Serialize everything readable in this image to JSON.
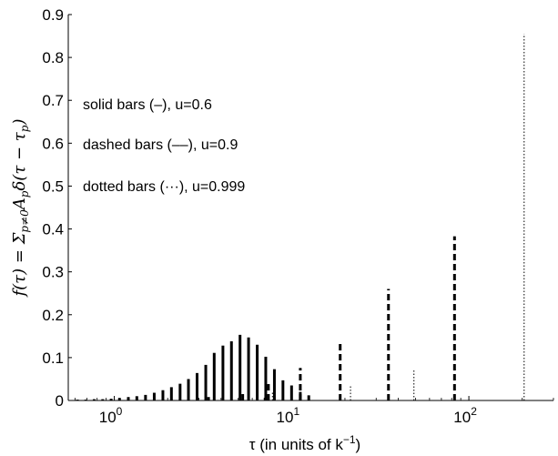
{
  "chart_data": {
    "type": "bar",
    "title": "",
    "xlabel": "τ (in units of k",
    "xlabel_sup": "−1",
    "xlabel_close": ")",
    "ylabel": "f(τ) = Σ",
    "ylabel_sub": "p≠0",
    "ylabel_rest": "A",
    "ylabel_sub2": "p",
    "ylabel_tail": "δ(τ − τ",
    "ylabel_sub3": "p",
    "ylabel_close": ")",
    "x_scale": "log",
    "xlim": [
      0.55,
      300
    ],
    "ylim": [
      0,
      0.9
    ],
    "grid": false,
    "x_ticks": [
      {
        "value": 1,
        "base": "10",
        "exp": "0"
      },
      {
        "value": 10,
        "base": "10",
        "exp": "1"
      },
      {
        "value": 100,
        "base": "10",
        "exp": "2"
      }
    ],
    "y_ticks": [
      {
        "value": 0,
        "label": "0"
      },
      {
        "value": 0.1,
        "label": "0.1"
      },
      {
        "value": 0.2,
        "label": "0.2"
      },
      {
        "value": 0.3,
        "label": "0.3"
      },
      {
        "value": 0.4,
        "label": "0.4"
      },
      {
        "value": 0.5,
        "label": "0.5"
      },
      {
        "value": 0.6,
        "label": "0.6"
      },
      {
        "value": 0.7,
        "label": "0.7"
      },
      {
        "value": 0.8,
        "label": "0.8"
      },
      {
        "value": 0.9,
        "label": "0.9"
      }
    ],
    "annotations": [
      "solid bars (–), u=0.6",
      "dashed bars (––), u=0.9",
      "dotted bars (···), u=0.999"
    ],
    "series": [
      {
        "style": "solid",
        "x": [
          0.62,
          0.69,
          0.77,
          0.86,
          0.96,
          1.07,
          1.2,
          1.34,
          1.5,
          1.68,
          1.88,
          2.1,
          2.35,
          2.62,
          2.93,
          3.28,
          3.66,
          4.1,
          4.58,
          5.12,
          5.72,
          6.4,
          7.15,
          8.0,
          8.94,
          10.0,
          11.2,
          12.5
        ],
        "values": [
          0.002,
          0.002,
          0.003,
          0.003,
          0.004,
          0.006,
          0.008,
          0.01,
          0.013,
          0.018,
          0.024,
          0.031,
          0.039,
          0.05,
          0.064,
          0.083,
          0.111,
          0.128,
          0.138,
          0.153,
          0.147,
          0.13,
          0.102,
          0.073,
          0.047,
          0.035,
          0.02,
          0.012
        ]
      },
      {
        "style": "dashed",
        "x": [
          3.4,
          5.3,
          7.4,
          11.2,
          18.8,
          35.2,
          83.0
        ],
        "values": [
          0.008,
          0.017,
          0.043,
          0.076,
          0.135,
          0.26,
          0.383
        ]
      },
      {
        "style": "dotted",
        "x": [
          7.8,
          21.5,
          49.0,
          205.0
        ],
        "values": [
          0.02,
          0.035,
          0.07,
          0.855
        ]
      }
    ]
  }
}
